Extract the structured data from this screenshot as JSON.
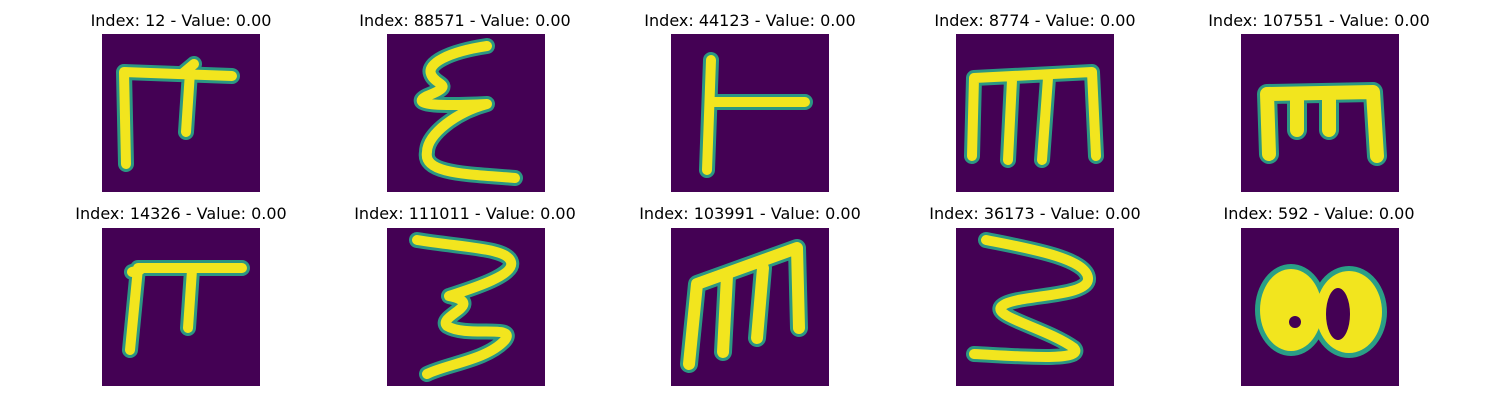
{
  "panels": [
    {
      "title": "Index: 12 - Value: 0.00"
    },
    {
      "title": "Index: 88571 - Value: 0.00"
    },
    {
      "title": "Index: 44123 - Value: 0.00"
    },
    {
      "title": "Index: 8774 - Value: 0.00"
    },
    {
      "title": "Index: 107551 - Value: 0.00"
    },
    {
      "title": "Index: 14326 - Value: 0.00"
    },
    {
      "title": "Index: 111011 - Value: 0.00"
    },
    {
      "title": "Index: 103991 - Value: 0.00"
    },
    {
      "title": "Index: 36173 - Value: 0.00"
    },
    {
      "title": "Index: 592 - Value: 0.00"
    }
  ],
  "colors": {
    "background": "#440154",
    "foreground": "#f2e51e",
    "edge": "#2a9f86"
  }
}
